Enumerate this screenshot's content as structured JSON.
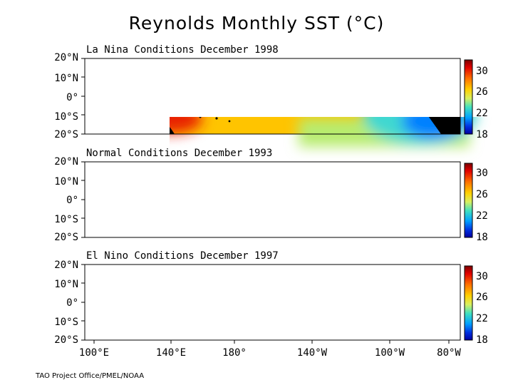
{
  "title": "Reynolds Monthly SST  (°C)",
  "credit": "TAO Project Office/PMEL/NOAA",
  "lat_labels": [
    "20°N",
    "10°N",
    "0°",
    "10°S",
    "20°S"
  ],
  "lon_labels": [
    "100°E",
    "140°E",
    "180°",
    "140°W",
    "100°W",
    "80°W"
  ],
  "colorbar_labels": [
    "30",
    "26",
    "22",
    "18"
  ],
  "panels": [
    {
      "title": "La Nina Conditions December 1998"
    },
    {
      "title": "Normal Conditions December 1993"
    },
    {
      "title": "El Nino Conditions December 1997"
    }
  ]
}
